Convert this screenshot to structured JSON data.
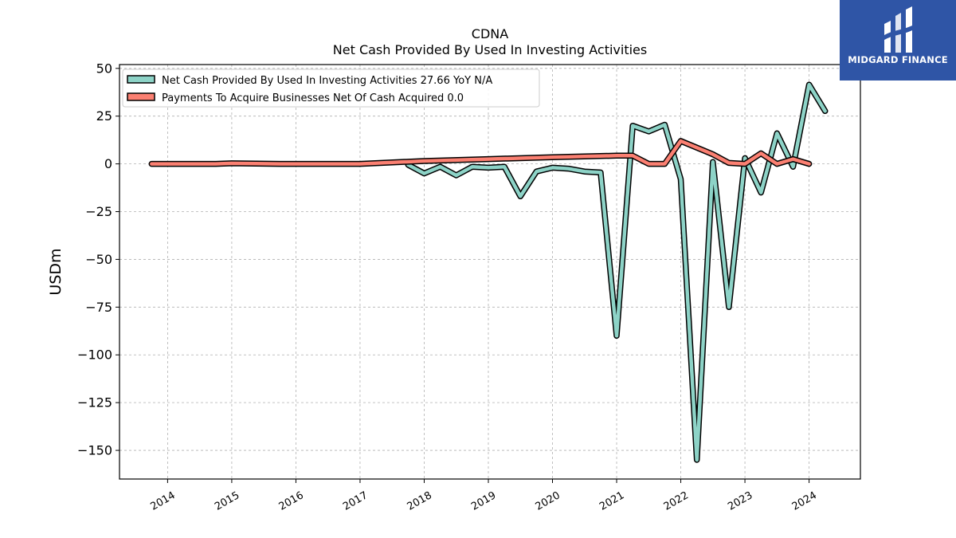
{
  "chart_data": {
    "type": "line",
    "title": "CDNA",
    "subtitle": "Net Cash Provided By Used In Investing Activities",
    "ylabel": "USDm",
    "xlabel": "",
    "ylim": [
      -165,
      52
    ],
    "xlim": [
      2013.25,
      2024.8
    ],
    "yticks": [
      50,
      25,
      0,
      -25,
      -50,
      -75,
      -100,
      -125,
      -150
    ],
    "ytick_labels": [
      "50",
      "25",
      "0",
      "−25",
      "−50",
      "−75",
      "−100",
      "−125",
      "−150"
    ],
    "xticks": [
      2014,
      2015,
      2016,
      2017,
      2018,
      2019,
      2020,
      2021,
      2022,
      2023,
      2024
    ],
    "xtick_labels": [
      "2014",
      "2015",
      "2016",
      "2017",
      "2018",
      "2019",
      "2020",
      "2021",
      "2022",
      "2023",
      "2024"
    ],
    "grid": true,
    "legend_position": "top-left",
    "series": [
      {
        "name": "Net Cash Provided By Used In Investing Activities",
        "legend_label": "Net Cash Provided By Used In Investing Activities  27.66 YoY N/A",
        "color": "#8dd3c7",
        "x": [
          2017.75,
          2018.0,
          2018.25,
          2018.5,
          2018.75,
          2019.0,
          2019.25,
          2019.5,
          2019.75,
          2020.0,
          2020.25,
          2020.5,
          2020.75,
          2021.0,
          2021.25,
          2021.5,
          2021.75,
          2022.0,
          2022.25,
          2022.5,
          2022.75,
          2023.0,
          2023.25,
          2023.5,
          2023.75,
          2024.0,
          2024.25
        ],
        "values": [
          -0.5,
          -5,
          -1.5,
          -6,
          -1.5,
          -2,
          -1.5,
          -17,
          -4,
          -2,
          -2.5,
          -4,
          -4.5,
          -90,
          20,
          17,
          20.5,
          -8,
          -155,
          1,
          -75,
          3,
          -15,
          16,
          -1.5,
          41.5,
          27.66
        ]
      },
      {
        "name": "Payments To Acquire Businesses Net Of Cash Acquired",
        "legend_label": "Payments To Acquire Businesses Net Of Cash Acquired  0.0",
        "color": "#fb8072",
        "x": [
          2013.75,
          2014.75,
          2015.0,
          2015.75,
          2016.75,
          2017.0,
          2018.0,
          2019.0,
          2020.0,
          2021.0,
          2021.25,
          2021.5,
          2021.75,
          2022.0,
          2022.5,
          2022.75,
          2023.0,
          2023.25,
          2023.5,
          2023.75,
          2024.0
        ],
        "values": [
          0,
          0,
          0.3,
          0,
          0,
          0,
          1.5,
          2.5,
          3.5,
          4.3,
          4.3,
          0,
          0,
          12,
          5,
          0.5,
          0,
          5.5,
          0,
          2.5,
          0
        ]
      }
    ]
  },
  "logo": {
    "text": "MIDGARD FINANCE",
    "background": "#2f55a6"
  }
}
